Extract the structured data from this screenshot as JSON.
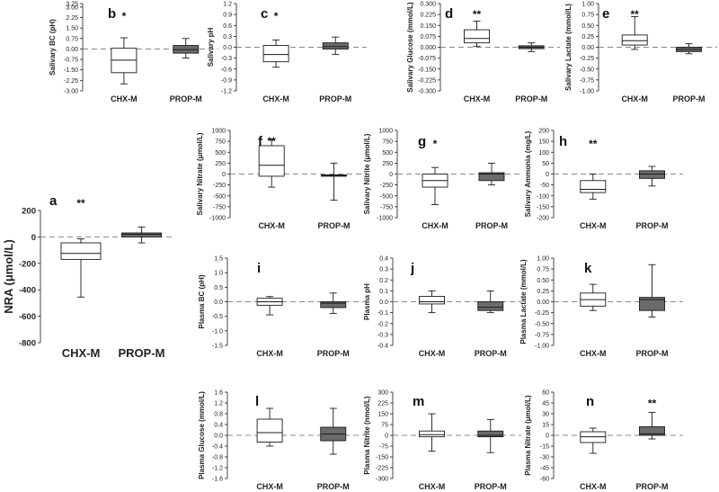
{
  "colors": {
    "chx_fill": "#ffffff",
    "prop_fill": "#6b6b6b",
    "stroke": "#1a1a1a",
    "zero_line": "#888888"
  },
  "chart_data": [
    {
      "id": "a",
      "letter": "a",
      "type": "boxplot",
      "ylabel": "NRA (μmol/L)",
      "ylim": [
        -800,
        200
      ],
      "ticks": [
        200,
        0,
        -200,
        -400,
        -600,
        -800
      ],
      "tick_labels": [
        "200",
        "0",
        "-200",
        "-400",
        "-600",
        "-800"
      ],
      "categories": [
        "CHX-M",
        "PROP-M"
      ],
      "boxes": [
        {
          "min": -455,
          "q1": -170,
          "median": -125,
          "q3": -45,
          "max": -15
        },
        {
          "min": -45,
          "q1": 0,
          "median": 20,
          "q3": 30,
          "max": 75
        }
      ],
      "significance": "**",
      "sig_index": 0
    },
    {
      "id": "b",
      "letter": "b",
      "type": "boxplot",
      "ylabel": "Salivary BC (pH)",
      "ylim": [
        -3,
        3.25
      ],
      "ticks": [
        3.25,
        3,
        2.25,
        1.5,
        0.75,
        0,
        -0.75,
        -1.5,
        -2.25,
        -3
      ],
      "tick_labels": [
        "3.25",
        "3.00",
        "2.25",
        "1.50",
        "0.75",
        "0.00",
        "-0.75",
        "-1.50",
        "-2.25",
        "-3.00"
      ],
      "categories": [
        "CHX-M",
        "PROP-M"
      ],
      "boxes": [
        {
          "min": -2.5,
          "q1": -1.7,
          "median": -0.8,
          "q3": 0.05,
          "max": 0.8
        },
        {
          "min": -0.65,
          "q1": -0.3,
          "median": -0.05,
          "q3": 0.25,
          "max": 0.75
        }
      ],
      "significance": "*",
      "sig_index": 0
    },
    {
      "id": "c",
      "letter": "c",
      "type": "boxplot",
      "ylabel": "Salivary pH",
      "ylim": [
        -1.2,
        1.2
      ],
      "ticks": [
        1.2,
        0.9,
        0.6,
        0.3,
        0,
        -0.3,
        -0.6,
        -0.9,
        -1.2
      ],
      "tick_labels": [
        "1.2",
        "0.9",
        "0.6",
        "0.3",
        "0.0",
        "-0.3",
        "-0.6",
        "-0.9",
        "-1.2"
      ],
      "categories": [
        "CHX-M",
        "PROP-M"
      ],
      "boxes": [
        {
          "min": -0.55,
          "q1": -0.4,
          "median": -0.2,
          "q3": 0.05,
          "max": 0.2
        },
        {
          "min": -0.2,
          "q1": -0.05,
          "median": 0.02,
          "q3": 0.12,
          "max": 0.28
        }
      ],
      "significance": "*",
      "sig_index": 0
    },
    {
      "id": "d",
      "letter": "d",
      "type": "boxplot",
      "ylabel": "Salivary Glucose (mmol/L)",
      "ylim": [
        -0.3,
        0.3
      ],
      "ticks": [
        0.3,
        0.225,
        0.15,
        0.075,
        0,
        -0.075,
        -0.15,
        -0.225,
        -0.3
      ],
      "tick_labels": [
        "0.300",
        "0.225",
        "0.150",
        "0.075",
        "0.000",
        "-0.075",
        "-0.150",
        "-0.225",
        "-0.300"
      ],
      "categories": [
        "CHX-M",
        "PROP-M"
      ],
      "boxes": [
        {
          "min": 0.005,
          "q1": 0.03,
          "median": 0.06,
          "q3": 0.12,
          "max": 0.18
        },
        {
          "min": -0.03,
          "q1": -0.01,
          "median": 0.0,
          "q3": 0.01,
          "max": 0.03
        }
      ],
      "significance": "**",
      "sig_index": 0
    },
    {
      "id": "e",
      "letter": "e",
      "type": "boxplot",
      "ylabel": "Salivary Lactate (mmol/L)",
      "ylim": [
        -1,
        1
      ],
      "ticks": [
        1,
        0.75,
        0.5,
        0.25,
        0,
        -0.25,
        -0.5,
        -0.75,
        -1
      ],
      "tick_labels": [
        "1.00",
        "0.75",
        "0.50",
        "0.25",
        "0.00",
        "-0.25",
        "-0.50",
        "-0.75",
        "-1.00"
      ],
      "categories": [
        "CHX-M",
        "PROP-M"
      ],
      "boxes": [
        {
          "min": -0.05,
          "q1": 0.05,
          "median": 0.15,
          "q3": 0.28,
          "max": 0.7
        },
        {
          "min": -0.15,
          "q1": -0.1,
          "median": -0.05,
          "q3": 0.0,
          "max": 0.08
        }
      ],
      "significance": "**",
      "sig_index": 0
    },
    {
      "id": "f",
      "letter": "f",
      "type": "boxplot",
      "ylabel": "Salivary Nitrate (μmol/L)",
      "ylim": [
        -1000,
        1000
      ],
      "ticks": [
        1000,
        750,
        500,
        250,
        0,
        -250,
        -500,
        -750,
        -1000
      ],
      "tick_labels": [
        "1000",
        "750",
        "500",
        "250",
        "0",
        "-250",
        "-500",
        "-750",
        "-1000"
      ],
      "categories": [
        "CHX-M",
        "PROP-M"
      ],
      "boxes": [
        {
          "min": -300,
          "q1": -50,
          "median": 200,
          "q3": 650,
          "max": 800
        },
        {
          "min": -600,
          "q1": -50,
          "median": -30,
          "q3": -20,
          "max": 250
        }
      ],
      "significance": "**",
      "sig_index": 0
    },
    {
      "id": "g",
      "letter": "g",
      "type": "boxplot",
      "ylabel": "Salivary Nitrite (μmol/L)",
      "ylim": [
        -1000,
        1000
      ],
      "ticks": [
        1000,
        750,
        500,
        250,
        0,
        -250,
        -500,
        -750,
        -1000
      ],
      "tick_labels": [
        "1000",
        "750",
        "500",
        "250",
        "0",
        "-250",
        "-500",
        "-750",
        "-1000"
      ],
      "categories": [
        "CHX-M",
        "PROP-M"
      ],
      "boxes": [
        {
          "min": -700,
          "q1": -300,
          "median": -150,
          "q3": 0,
          "max": 150
        },
        {
          "min": -250,
          "q1": -150,
          "median": 0,
          "q3": 30,
          "max": 250
        }
      ],
      "significance": "*",
      "sig_index": 0
    },
    {
      "id": "h",
      "letter": "h",
      "type": "boxplot",
      "ylabel": "Salivary Ammonia (mg/L)",
      "ylim": [
        -200,
        200
      ],
      "ticks": [
        200,
        150,
        100,
        50,
        0,
        -50,
        -100,
        -150,
        -200
      ],
      "tick_labels": [
        "200",
        "150",
        "100",
        "50",
        "0",
        "-50",
        "-100",
        "-150",
        "-200"
      ],
      "categories": [
        "CHX-M",
        "PROP-M"
      ],
      "boxes": [
        {
          "min": -115,
          "q1": -85,
          "median": -70,
          "q3": -30,
          "max": 0
        },
        {
          "min": -55,
          "q1": -20,
          "median": 0,
          "q3": 15,
          "max": 35
        }
      ],
      "significance": "**",
      "sig_index": 0
    },
    {
      "id": "i",
      "letter": "i",
      "type": "boxplot",
      "ylabel": "Plasma BC (pH)",
      "ylim": [
        -1.5,
        1.5
      ],
      "ticks": [
        1.5,
        1,
        0.5,
        0,
        -0.5,
        -1,
        -1.5
      ],
      "tick_labels": [
        "1.5",
        "1.0",
        "0.5",
        "0.0",
        "-0.5",
        "-1.0",
        "-1.5"
      ],
      "categories": [
        "CHX-M",
        "PROP-M"
      ],
      "boxes": [
        {
          "min": -0.45,
          "q1": -0.12,
          "median": 0.0,
          "q3": 0.12,
          "max": 0.18
        },
        {
          "min": -0.4,
          "q1": -0.2,
          "median": -0.05,
          "q3": 0.0,
          "max": 0.3
        }
      ],
      "significance": "",
      "sig_index": 0
    },
    {
      "id": "j",
      "letter": "j",
      "type": "boxplot",
      "ylabel": "Plasma pH",
      "ylim": [
        -0.4,
        0.4
      ],
      "ticks": [
        0.4,
        0.3,
        0.2,
        0.1,
        0,
        -0.1,
        -0.2,
        -0.3,
        -0.4
      ],
      "tick_labels": [
        "0.4",
        "0.3",
        "0.2",
        "0.1",
        "0.0",
        "-0.1",
        "-0.2",
        "-0.3",
        "-0.4"
      ],
      "categories": [
        "CHX-M",
        "PROP-M"
      ],
      "boxes": [
        {
          "min": -0.1,
          "q1": -0.02,
          "median": 0.0,
          "q3": 0.05,
          "max": 0.1
        },
        {
          "min": -0.1,
          "q1": -0.08,
          "median": -0.05,
          "q3": 0.0,
          "max": 0.1
        }
      ],
      "significance": "",
      "sig_index": 0
    },
    {
      "id": "k",
      "letter": "k",
      "type": "boxplot",
      "ylabel": "Plasma Lactate (mmol/L)",
      "ylim": [
        -1,
        1
      ],
      "ticks": [
        1,
        0.75,
        0.5,
        0.25,
        0,
        -0.25,
        -0.5,
        -0.75,
        -1
      ],
      "tick_labels": [
        "1.00",
        "0.75",
        "0.50",
        "0.25",
        "0.00",
        "-0.25",
        "-0.50",
        "-0.75",
        "-1.00"
      ],
      "categories": [
        "CHX-M",
        "PROP-M"
      ],
      "boxes": [
        {
          "min": -0.2,
          "q1": -0.1,
          "median": 0.05,
          "q3": 0.2,
          "max": 0.4
        },
        {
          "min": -0.35,
          "q1": -0.2,
          "median": 0.05,
          "q3": 0.1,
          "max": 0.85
        }
      ],
      "significance": "",
      "sig_index": 0
    },
    {
      "id": "l",
      "letter": "l",
      "type": "boxplot",
      "ylabel": "Plasma Glucose (mmol/L)",
      "ylim": [
        -1.6,
        1.6
      ],
      "ticks": [
        1.6,
        1.2,
        0.8,
        0.4,
        0,
        -0.4,
        -0.8,
        -1.2,
        -1.6
      ],
      "tick_labels": [
        "1.6",
        "1.2",
        "0.8",
        "0.4",
        "0.0",
        "-0.4",
        "-0.8",
        "-1.2",
        "-1.6"
      ],
      "categories": [
        "CHX-M",
        "PROP-M"
      ],
      "boxes": [
        {
          "min": -0.4,
          "q1": -0.25,
          "median": 0.1,
          "q3": 0.6,
          "max": 1.0
        },
        {
          "min": -0.7,
          "q1": -0.2,
          "median": 0.05,
          "q3": 0.3,
          "max": 1.0
        }
      ],
      "significance": "",
      "sig_index": 0
    },
    {
      "id": "m",
      "letter": "m",
      "type": "boxplot",
      "ylabel": "Plasma Nitrite (nmol/L)",
      "ylim": [
        -300,
        300
      ],
      "ticks": [
        300,
        225,
        150,
        75,
        0,
        -75,
        -150,
        -225,
        -300
      ],
      "tick_labels": [
        "300",
        "225",
        "150",
        "75",
        "0",
        "-75",
        "-150",
        "-225",
        "-300"
      ],
      "categories": [
        "CHX-M",
        "PROP-M"
      ],
      "boxes": [
        {
          "min": -110,
          "q1": -10,
          "median": 5,
          "q3": 30,
          "max": 150
        },
        {
          "min": -120,
          "q1": -10,
          "median": 0,
          "q3": 30,
          "max": 110
        }
      ],
      "significance": "",
      "sig_index": 0
    },
    {
      "id": "n",
      "letter": "n",
      "type": "boxplot",
      "ylabel": "Plasma Nitrate (μmol/L)",
      "ylim": [
        -60,
        60
      ],
      "ticks": [
        60,
        45,
        30,
        15,
        0,
        -15,
        -30,
        -45,
        -60
      ],
      "tick_labels": [
        "60",
        "45",
        "30",
        "15",
        "0",
        "-15",
        "-30",
        "-45",
        "-60"
      ],
      "categories": [
        "CHX-M",
        "PROP-M"
      ],
      "boxes": [
        {
          "min": -25,
          "q1": -10,
          "median": -2,
          "q3": 5,
          "max": 10
        },
        {
          "min": -5,
          "q1": 0,
          "median": 2,
          "q3": 12,
          "max": 32
        }
      ],
      "significance": "**",
      "sig_index": 1
    }
  ]
}
